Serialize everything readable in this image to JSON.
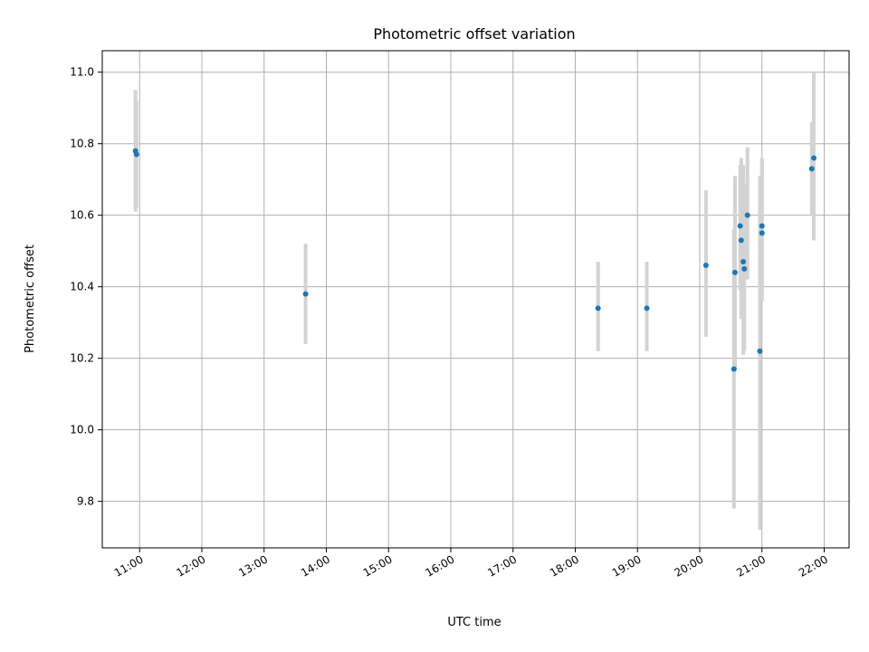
{
  "chart_data": {
    "type": "scatter",
    "title": "Photometric offset variation",
    "xlabel": "UTC time",
    "ylabel": "Photometric offset",
    "x_axis_type": "time",
    "xlim": [
      "10:24",
      "22:24"
    ],
    "ylim": [
      9.67,
      11.06
    ],
    "x_ticks": [
      "11:00",
      "12:00",
      "13:00",
      "14:00",
      "15:00",
      "16:00",
      "17:00",
      "18:00",
      "19:00",
      "20:00",
      "21:00",
      "22:00"
    ],
    "y_ticks": [
      9.8,
      10.0,
      10.2,
      10.4,
      10.6,
      10.8,
      11.0
    ],
    "y_tick_labels": [
      "9.8",
      "10.0",
      "10.2",
      "10.4",
      "10.6",
      "10.8",
      "11.0"
    ],
    "grid": true,
    "marker_color": "#1f77b4",
    "errorbar_color": "#d3d3d3",
    "points": [
      {
        "x": "10:56",
        "y": 10.78,
        "err_low": 10.61,
        "err_high": 10.95
      },
      {
        "x": "10:57",
        "y": 10.77,
        "err_low": 10.62,
        "err_high": 10.92
      },
      {
        "x": "13:40",
        "y": 10.38,
        "err_low": 10.24,
        "err_high": 10.52
      },
      {
        "x": "18:22",
        "y": 10.34,
        "err_low": 10.22,
        "err_high": 10.47
      },
      {
        "x": "19:09",
        "y": 10.34,
        "err_low": 10.22,
        "err_high": 10.47
      },
      {
        "x": "20:06",
        "y": 10.46,
        "err_low": 10.26,
        "err_high": 10.67
      },
      {
        "x": "20:33",
        "y": 10.17,
        "err_low": 9.78,
        "err_high": 10.56
      },
      {
        "x": "20:34",
        "y": 10.44,
        "err_low": 10.17,
        "err_high": 10.71
      },
      {
        "x": "20:39",
        "y": 10.57,
        "err_low": 10.39,
        "err_high": 10.74
      },
      {
        "x": "20:40",
        "y": 10.53,
        "err_low": 10.31,
        "err_high": 10.76
      },
      {
        "x": "20:42",
        "y": 10.47,
        "err_low": 10.21,
        "err_high": 10.74
      },
      {
        "x": "20:43",
        "y": 10.45,
        "err_low": 10.22,
        "err_high": 10.69
      },
      {
        "x": "20:46",
        "y": 10.6,
        "err_low": 10.42,
        "err_high": 10.79
      },
      {
        "x": "20:58",
        "y": 10.22,
        "err_low": 9.72,
        "err_high": 10.71
      },
      {
        "x": "21:00",
        "y": 10.57,
        "err_low": 10.39,
        "err_high": 10.76
      },
      {
        "x": "21:00",
        "y": 10.55,
        "err_low": 10.36,
        "err_high": 10.75
      },
      {
        "x": "21:48",
        "y": 10.73,
        "err_low": 10.6,
        "err_high": 10.86
      },
      {
        "x": "21:50",
        "y": 10.76,
        "err_low": 10.53,
        "err_high": 11.0
      }
    ]
  }
}
